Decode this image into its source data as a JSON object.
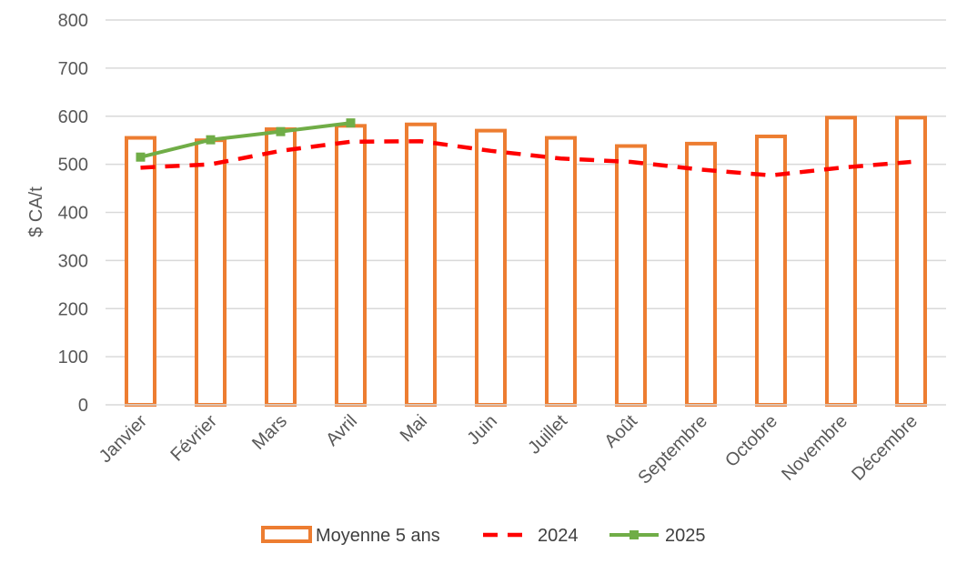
{
  "chart_data": {
    "type": "bar",
    "title": "",
    "xlabel": "",
    "ylabel": "$ CA/t",
    "ylim": [
      0,
      800
    ],
    "yticks": [
      0,
      100,
      200,
      300,
      400,
      500,
      600,
      700,
      800
    ],
    "grid": true,
    "legend_position": "bottom",
    "categories": [
      "Janvier",
      "Février",
      "Mars",
      "Avril",
      "Mai",
      "Juin",
      "Juillet",
      "Août",
      "Septembre",
      "Octobre",
      "Novembre",
      "Décembre"
    ],
    "series": [
      {
        "name": "Moyenne 5 ans",
        "type": "bar",
        "color": "#ED7D31",
        "values": [
          555,
          550,
          573,
          580,
          583,
          570,
          555,
          538,
          543,
          558,
          597,
          597
        ]
      },
      {
        "name": "2024",
        "type": "line",
        "style": "dashed",
        "color": "#FF0000",
        "values": [
          493,
          500,
          528,
          547,
          548,
          528,
          512,
          505,
          489,
          477,
          493,
          505
        ]
      },
      {
        "name": "2025",
        "type": "line",
        "marker": "square",
        "color": "#70AD47",
        "values": [
          515,
          551,
          568,
          586,
          null,
          null,
          null,
          null,
          null,
          null,
          null,
          null
        ]
      }
    ]
  }
}
